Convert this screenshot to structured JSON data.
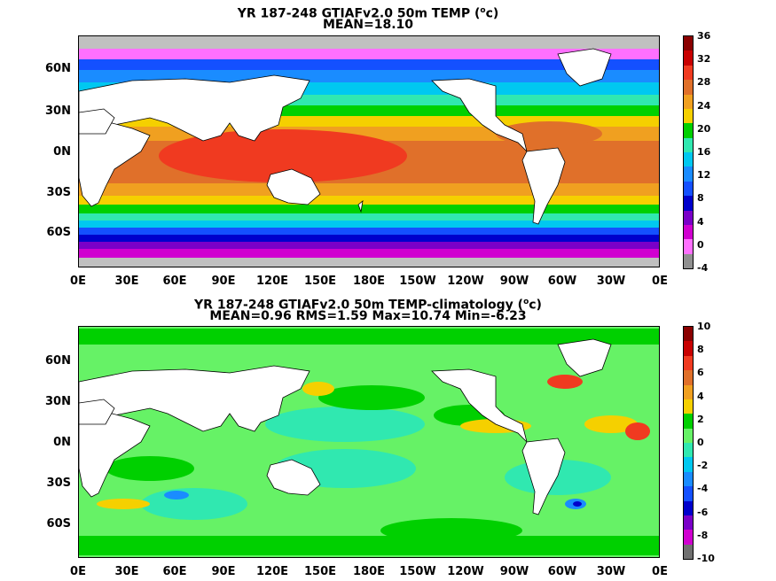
{
  "panel_top": {
    "title_line1": "YR 187-248 GTIAFv2.0 50m TEMP (",
    "title_sup": "o",
    "title_unit": "c)",
    "title_line2": "MEAN=18.10",
    "lat_labels": [
      "60N",
      "30N",
      "0N",
      "30S",
      "60S"
    ],
    "lon_labels": [
      "0E",
      "30E",
      "60E",
      "90E",
      "120E",
      "150E",
      "180E",
      "150W",
      "120W",
      "90W",
      "60W",
      "30W",
      "0E"
    ],
    "colorbar_ticks": [
      "36",
      "32",
      "28",
      "24",
      "20",
      "16",
      "12",
      "8",
      "4",
      "0",
      "-4"
    ],
    "colorbar_colors": [
      "#8a0000",
      "#c80000",
      "#f03a20",
      "#e0702a",
      "#f0a020",
      "#f5d000",
      "#00d000",
      "#30e8b0",
      "#00c8f0",
      "#1a8cff",
      "#1450ff",
      "#0000cc",
      "#7a00c8",
      "#d000d0",
      "#ff70ff",
      "#909090"
    ]
  },
  "panel_bottom": {
    "title_line1": "YR 187-248 GTIAFv2.0 50m TEMP-climatology (",
    "title_sup": "o",
    "title_unit": "c)",
    "title_line2": "MEAN=0.96   RMS=1.59   Max=10.74   Min=-6.23",
    "lat_labels": [
      "60N",
      "30N",
      "0N",
      "30S",
      "60S"
    ],
    "lon_labels": [
      "0E",
      "30E",
      "60E",
      "90E",
      "120E",
      "150E",
      "180E",
      "150W",
      "120W",
      "90W",
      "60W",
      "30W",
      "0E"
    ],
    "colorbar_ticks": [
      "10",
      "8",
      "6",
      "4",
      "2",
      "0",
      "-2",
      "-4",
      "-6",
      "-8",
      "-10"
    ],
    "colorbar_colors": [
      "#8a0000",
      "#c80000",
      "#f03a20",
      "#e0702a",
      "#f0a020",
      "#f5d000",
      "#00d000",
      "#66f266",
      "#30e8b0",
      "#00c8f0",
      "#1a8cff",
      "#1450ff",
      "#0000cc",
      "#7a00c8",
      "#d000d0",
      "#707070"
    ]
  }
}
